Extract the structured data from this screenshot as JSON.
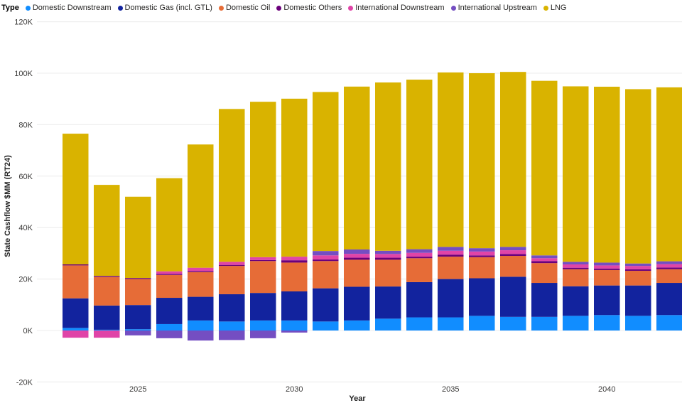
{
  "legend": {
    "title": "Type",
    "items": [
      {
        "label": "Domestic Downstream",
        "color": "#118DFF"
      },
      {
        "label": "Domestic Gas (incl. GTL)",
        "color": "#12239E"
      },
      {
        "label": "Domestic Oil",
        "color": "#E66C37"
      },
      {
        "label": "Domestic Others",
        "color": "#6B007B"
      },
      {
        "label": "International Downstream",
        "color": "#E044A7"
      },
      {
        "label": "International Upstream",
        "color": "#744EC2"
      },
      {
        "label": "LNG",
        "color": "#D9B300"
      }
    ]
  },
  "chart_data": {
    "type": "bar",
    "stacked": true,
    "title": "",
    "xlabel": "Year",
    "ylabel": "State Cashflow $MM (RT24)",
    "value_unit": "thousands of $MM (K)",
    "ylim": [
      -20,
      120
    ],
    "y_ticks": [
      -20,
      0,
      20,
      40,
      60,
      80,
      100,
      120
    ],
    "y_tick_suffix": "K",
    "grid": true,
    "legend_position": "top",
    "categories": [
      "2023",
      "2024",
      "2025",
      "2026",
      "2027",
      "2028",
      "2029",
      "2030",
      "2031",
      "2032",
      "2033",
      "2034",
      "2035",
      "2036",
      "2037",
      "2038",
      "2039",
      "2040",
      "2041",
      "2042"
    ],
    "x_tick_labels": [
      "2025",
      "2030",
      "2035",
      "2040"
    ],
    "series": [
      {
        "name": "Domestic Downstream",
        "color": "#118DFF",
        "values": [
          1.0,
          0.3,
          0.5,
          2.5,
          3.9,
          3.5,
          3.9,
          3.9,
          3.5,
          3.9,
          4.6,
          5.1,
          5.1,
          5.7,
          5.3,
          5.3,
          5.7,
          6.0,
          5.7,
          6.0
        ]
      },
      {
        "name": "Domestic Gas (incl. GTL)",
        "color": "#12239E",
        "values": [
          11.5,
          9.4,
          9.4,
          10.2,
          9.2,
          10.6,
          10.7,
          11.3,
          12.9,
          13.1,
          12.5,
          13.7,
          14.9,
          14.6,
          15.6,
          13.2,
          11.5,
          11.5,
          11.8,
          12.5
        ]
      },
      {
        "name": "Domestic Oil",
        "color": "#E66C37",
        "values": [
          12.8,
          11.1,
          10.1,
          8.9,
          9.6,
          11.0,
          12.4,
          11.2,
          10.6,
          10.5,
          10.4,
          9.3,
          8.7,
          8.2,
          8.1,
          7.7,
          6.6,
          6.0,
          5.7,
          5.3
        ]
      },
      {
        "name": "Domestic Others",
        "color": "#6B007B",
        "values": [
          0.4,
          0.4,
          0.4,
          0.4,
          0.4,
          0.4,
          0.4,
          0.9,
          0.6,
          0.8,
          0.8,
          0.6,
          0.8,
          0.7,
          0.75,
          0.8,
          0.6,
          0.6,
          0.6,
          0.7
        ]
      },
      {
        "name": "International Downstream",
        "color": "#E044A7",
        "values": [
          -2.8,
          -2.8,
          0,
          1.0,
          1.3,
          1.2,
          1.1,
          1.4,
          1.6,
          1.5,
          1.45,
          1.5,
          1.5,
          1.5,
          1.45,
          1.1,
          1.3,
          1.2,
          1.3,
          1.3
        ]
      },
      {
        "name": "International Upstream",
        "color": "#744EC2",
        "values": [
          0,
          0,
          -1.9,
          -3.0,
          -3.9,
          -3.7,
          -3.0,
          -0.8,
          1.7,
          1.7,
          1.25,
          1.4,
          1.5,
          1.3,
          1.3,
          1.1,
          1.0,
          1.1,
          0.95,
          1.1
        ]
      },
      {
        "name": "LNG",
        "color": "#D9B300",
        "values": [
          50.8,
          35.4,
          31.6,
          36.2,
          47.9,
          59.4,
          60.4,
          61.4,
          61.8,
          63.3,
          65.4,
          65.9,
          67.8,
          68.0,
          68.0,
          67.85,
          68.2,
          68.35,
          67.75,
          67.6
        ]
      }
    ]
  }
}
